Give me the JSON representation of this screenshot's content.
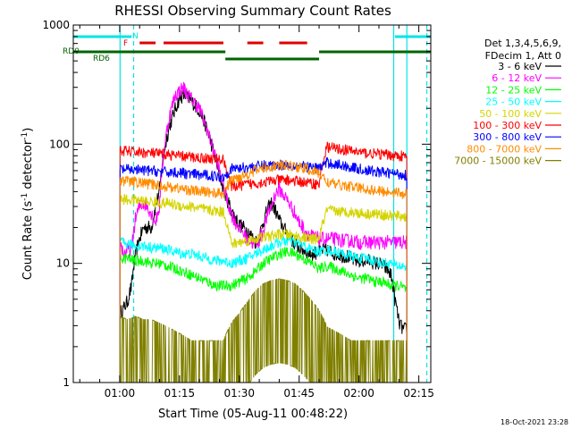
{
  "chart_data": {
    "type": "line",
    "title": "RHESSI Observing Summary Count Rates",
    "xlabel": "Start Time (05-Aug-11 00:48:22)",
    "ylabel_main": "Count Rate (s",
    "ylabel_sup1": "-1",
    "ylabel_mid": " detector",
    "ylabel_sup2": "-1",
    "ylabel_end": ")",
    "y_scale": "log",
    "ylim": [
      1,
      1000
    ],
    "xlim_minutes": [
      48.37,
      138.0
    ],
    "x_ticks": [
      {
        "minute": 60,
        "label": "01:00"
      },
      {
        "minute": 75,
        "label": "01:15"
      },
      {
        "minute": 90,
        "label": "01:30"
      },
      {
        "minute": 105,
        "label": "01:45"
      },
      {
        "minute": 120,
        "label": "02:00"
      },
      {
        "minute": 135,
        "label": "02:15"
      }
    ],
    "y_ticks": [
      {
        "value": 1,
        "label": "1"
      },
      {
        "value": 10,
        "label": "10"
      },
      {
        "value": 100,
        "label": "100"
      },
      {
        "value": 1000,
        "label": "1000"
      }
    ],
    "legend_placement": "right",
    "legend_header": [
      "Det 1,3,4,5,6,9,",
      "FDecim 1, Att 0"
    ],
    "timestamp": "18-Oct-2021 23:28",
    "flags": {
      "N": {
        "label": "N",
        "color": "#00e5e5",
        "segments": [
          [
            48.4,
            63.0
          ],
          [
            129.0,
            138.0
          ]
        ]
      },
      "F": {
        "label": "F",
        "color": "#e00000",
        "segments": [
          [
            65.0,
            69.0
          ],
          [
            71.0,
            86.0
          ],
          [
            92.0,
            96.0
          ],
          [
            100.0,
            107.0
          ]
        ]
      },
      "RD0": {
        "label": "RD0",
        "color": "#006400",
        "segments": [
          [
            48.4,
            86.5
          ],
          [
            110.0,
            138.0
          ]
        ]
      },
      "RD6": {
        "label": "RD6",
        "color": "#006400",
        "segments": [
          [
            86.5,
            110.0
          ]
        ]
      }
    },
    "vlines": [
      {
        "minute": 60.1,
        "style": "solid",
        "color": "#00e5e5"
      },
      {
        "minute": 63.5,
        "style": "dashed",
        "color": "#00e5e5"
      },
      {
        "minute": 128.7,
        "style": "solid",
        "color": "#00e5e5"
      },
      {
        "minute": 132.0,
        "style": "solid",
        "color": "#00e5e5"
      },
      {
        "minute": 137.0,
        "style": "dashed",
        "color": "#00e5e5"
      }
    ],
    "series": [
      {
        "name": "3 - 6 keV",
        "color": "#000000",
        "x": [
          60.1,
          61.0,
          62.0,
          63.0,
          64.0,
          65.0,
          66.0,
          68.0,
          70.0,
          72.0,
          74.0,
          75.0,
          76.0,
          77.0,
          78.0,
          79.0,
          80.0,
          81.0,
          82.0,
          83.0,
          84.0,
          85.0,
          86.0,
          87.0,
          88.0,
          89.0,
          90.0,
          91.0,
          92.0,
          93.0,
          94.0,
          95.0,
          96.0,
          97.0,
          98.0,
          99.0,
          100.0,
          101.0,
          102.0,
          103.0,
          104.0,
          105.0,
          106.0,
          107.0,
          108.0,
          109.0,
          110.0,
          111.0,
          112.0,
          113.0,
          114.0,
          115.0,
          116.0,
          117.0,
          118.0,
          119.0,
          120.0,
          121.0,
          122.0,
          123.0,
          124.0,
          125.0,
          126.0,
          127.0,
          128.0,
          129.0,
          130.0,
          131.0,
          132.0
        ],
        "y": [
          3.8,
          4.2,
          4.8,
          6.5,
          12,
          16,
          20,
          20,
          40,
          120,
          200,
          240,
          260,
          250,
          230,
          210,
          190,
          160,
          130,
          100,
          75,
          55,
          42,
          34,
          28,
          24,
          21,
          20,
          19,
          17,
          15,
          17,
          22,
          28,
          32,
          28,
          23,
          20,
          18,
          16,
          14.5,
          13.5,
          13,
          12.5,
          12,
          12.2,
          12.5,
          13,
          13,
          12.5,
          12,
          12,
          11.5,
          11.5,
          11,
          10.5,
          10.5,
          10.5,
          10.5,
          10.5,
          10,
          10,
          9.5,
          9,
          8,
          5,
          3.2,
          2.8,
          2.8
        ]
      },
      {
        "name": "6 - 12 keV",
        "color": "#ff00ff",
        "x": [
          60.1,
          61.0,
          62.0,
          63.0,
          64.0,
          65.0,
          66.0,
          67.0,
          68.0,
          69.0,
          70.0,
          71.0,
          72.0,
          73.0,
          74.0,
          75.0,
          76.0,
          77.0,
          78.0,
          79.0,
          80.0,
          81.0,
          82.0,
          83.0,
          84.0,
          85.0,
          86.0,
          87.0,
          88.0,
          89.0,
          90.0,
          91.0,
          92.0,
          93.0,
          94.0,
          95.0,
          96.0,
          97.0,
          98.0,
          99.0,
          100.0,
          101.0,
          102.0,
          103.0,
          104.0,
          105.0,
          106.0,
          107.0,
          108.0,
          109.0,
          110.0,
          112.0,
          114.0,
          116.0,
          118.0,
          120.0,
          122.0,
          124.0,
          126.0,
          128.0,
          129.0,
          130.0,
          131.0,
          132.0
        ],
        "y": [
          15,
          12,
          13,
          13,
          24,
          30,
          32,
          30,
          26,
          22,
          30,
          80,
          140,
          200,
          260,
          280,
          300,
          260,
          240,
          220,
          200,
          160,
          130,
          100,
          80,
          60,
          45,
          33,
          26,
          22,
          20,
          18,
          16,
          15,
          14.5,
          15.5,
          19,
          25,
          30,
          38,
          42,
          38,
          34,
          30,
          26,
          22,
          20,
          18,
          17,
          16.5,
          16,
          16,
          16,
          15.5,
          15.5,
          15,
          15,
          15,
          15,
          15,
          15,
          15,
          15,
          15
        ]
      },
      {
        "name": "12 - 25 keV",
        "color": "#00ff00",
        "x": [
          60.1,
          62.0,
          64.0,
          66.0,
          68.0,
          70.0,
          72.0,
          74.0,
          76.0,
          78.0,
          80.0,
          82.0,
          84.0,
          86.0,
          88.0,
          90.0,
          92.0,
          94.0,
          96.0,
          98.0,
          100.0,
          102.0,
          104.0,
          106.0,
          108.0,
          110.0,
          112.0,
          114.0,
          116.0,
          118.0,
          120.0,
          122.0,
          124.0,
          126.0,
          128.0,
          130.0,
          132.0
        ],
        "y": [
          11,
          11,
          10.5,
          10.5,
          10,
          10,
          9.5,
          9,
          8.5,
          8,
          7.5,
          7,
          6.5,
          6.5,
          6.5,
          7,
          7.5,
          8.5,
          10,
          11,
          12,
          12.5,
          12,
          11,
          10,
          9,
          9.5,
          9,
          8.5,
          8,
          7.5,
          7.5,
          7,
          7,
          6.5,
          6.5,
          6
        ]
      },
      {
        "name": "25 - 50 keV",
        "color": "#00ffff",
        "x": [
          60.1,
          62.0,
          64.0,
          66.0,
          68.0,
          70.0,
          72.0,
          74.0,
          76.0,
          78.0,
          80.0,
          82.0,
          84.0,
          86.0,
          88.0,
          90.0,
          92.0,
          94.0,
          96.0,
          98.0,
          100.0,
          102.0,
          104.0,
          106.0,
          108.0,
          110.0,
          112.0,
          114.0,
          116.0,
          118.0,
          120.0,
          122.0,
          124.0,
          126.0,
          128.0,
          130.0,
          132.0
        ],
        "y": [
          15,
          14.5,
          14,
          14,
          13.5,
          13.5,
          13,
          12.5,
          12,
          12,
          11.5,
          11,
          10.5,
          10.5,
          10,
          10.5,
          11,
          12,
          13,
          14,
          15,
          15.5,
          15,
          14,
          13,
          12.5,
          13,
          12.5,
          12,
          11.5,
          11,
          11,
          10.5,
          10,
          10,
          9.5,
          9.5
        ]
      },
      {
        "name": "50 - 100 keV",
        "color": "#d4d400",
        "x": [
          60.1,
          62.0,
          64.0,
          66.0,
          68.0,
          70.0,
          72.0,
          74.0,
          76.0,
          78.0,
          80.0,
          82.0,
          84.0,
          86.0,
          88.0,
          90.0,
          92.0,
          94.0,
          96.0,
          98.0,
          100.0,
          102.0,
          104.0,
          106.0,
          108.0,
          110.0,
          112.0,
          114.0,
          116.0,
          118.0,
          120.0,
          122.0,
          124.0,
          126.0,
          128.0,
          130.0,
          132.0
        ],
        "y": [
          35,
          34,
          34,
          33,
          33,
          32,
          32,
          31,
          30,
          30,
          29,
          28,
          27.5,
          27,
          14.5,
          15,
          15.5,
          16,
          16.5,
          17,
          17.5,
          17.5,
          17,
          16.5,
          16,
          16,
          28,
          27.5,
          27,
          27,
          26.5,
          26,
          26,
          25.5,
          25,
          25,
          24.5
        ]
      },
      {
        "name": "100 - 300 keV",
        "color": "#ff0000",
        "x": [
          60.1,
          62.0,
          64.0,
          66.0,
          68.0,
          70.0,
          72.0,
          74.0,
          76.0,
          78.0,
          80.0,
          82.0,
          84.0,
          86.0,
          88.0,
          90.0,
          92.0,
          94.0,
          96.0,
          98.0,
          100.0,
          102.0,
          104.0,
          106.0,
          108.0,
          110.0,
          112.0,
          114.0,
          116.0,
          118.0,
          120.0,
          122.0,
          124.0,
          126.0,
          128.0,
          130.0,
          132.0
        ],
        "y": [
          88,
          87,
          86,
          85,
          84,
          83,
          82,
          80,
          79,
          78,
          77,
          76,
          75,
          74,
          44,
          45,
          46,
          47,
          48,
          49,
          50,
          50,
          49,
          48,
          47,
          46,
          95,
          92,
          90,
          88,
          86,
          84,
          83,
          82,
          81,
          80,
          78
        ]
      },
      {
        "name": "300 - 800 keV",
        "color": "#0000ff",
        "x": [
          60.1,
          62.0,
          64.0,
          66.0,
          68.0,
          70.0,
          72.0,
          74.0,
          76.0,
          78.0,
          80.0,
          82.0,
          84.0,
          86.0,
          88.0,
          90.0,
          92.0,
          94.0,
          96.0,
          98.0,
          100.0,
          102.0,
          104.0,
          106.0,
          108.0,
          110.0,
          112.0,
          114.0,
          116.0,
          118.0,
          120.0,
          122.0,
          124.0,
          126.0,
          128.0,
          130.0,
          132.0
        ],
        "y": [
          62,
          61,
          61,
          60,
          60,
          59,
          58,
          58,
          57,
          56,
          55,
          55,
          54,
          53,
          62,
          63,
          64,
          65,
          66,
          67,
          67,
          67,
          66,
          65,
          64,
          63,
          70,
          68,
          66,
          64,
          62,
          60,
          59,
          58,
          57,
          56,
          55
        ]
      },
      {
        "name": "800 - 7000 keV",
        "color": "#ff8c00",
        "x": [
          60.1,
          62.0,
          64.0,
          66.0,
          68.0,
          70.0,
          72.0,
          74.0,
          76.0,
          78.0,
          80.0,
          82.0,
          84.0,
          86.0,
          88.0,
          90.0,
          92.0,
          94.0,
          96.0,
          98.0,
          100.0,
          102.0,
          104.0,
          106.0,
          108.0,
          110.0,
          112.0,
          114.0,
          116.0,
          118.0,
          120.0,
          122.0,
          124.0,
          126.0,
          128.0,
          130.0,
          132.0
        ],
        "y": [
          50,
          49,
          48,
          47,
          46,
          45,
          44,
          43,
          42,
          41,
          40,
          40,
          39,
          38,
          50,
          53,
          56,
          60,
          63,
          65,
          66,
          66,
          65,
          63,
          60,
          57,
          48,
          46,
          45,
          44,
          43,
          42,
          41,
          40,
          40,
          39,
          38
        ]
      },
      {
        "name": "7000 - 15000 keV",
        "color": "#808000",
        "x": [
          60.1,
          62.0,
          64.0,
          66.0,
          68.0,
          70.0,
          72.0,
          74.0,
          76.0,
          78.0,
          80.0,
          82.0,
          84.0,
          86.0,
          88.0,
          90.0,
          92.0,
          94.0,
          96.0,
          98.0,
          100.0,
          102.0,
          104.0,
          106.0,
          108.0,
          110.0,
          112.0,
          114.0,
          116.0,
          118.0,
          120.0,
          122.0,
          124.0,
          126.0,
          128.0,
          130.0,
          132.0
        ],
        "y": [
          1.6,
          1.5,
          1.6,
          1.5,
          1.5,
          1.4,
          1.3,
          1.2,
          1.1,
          1.0,
          1.0,
          1.0,
          1.0,
          1.0,
          1.4,
          1.7,
          2.1,
          2.6,
          3.0,
          3.2,
          3.3,
          3.2,
          3.0,
          2.6,
          2.2,
          1.8,
          1.3,
          1.2,
          1.1,
          1.0,
          1.0,
          1.0,
          1.0,
          1.0,
          1.0,
          1.0,
          1.0
        ]
      }
    ]
  }
}
